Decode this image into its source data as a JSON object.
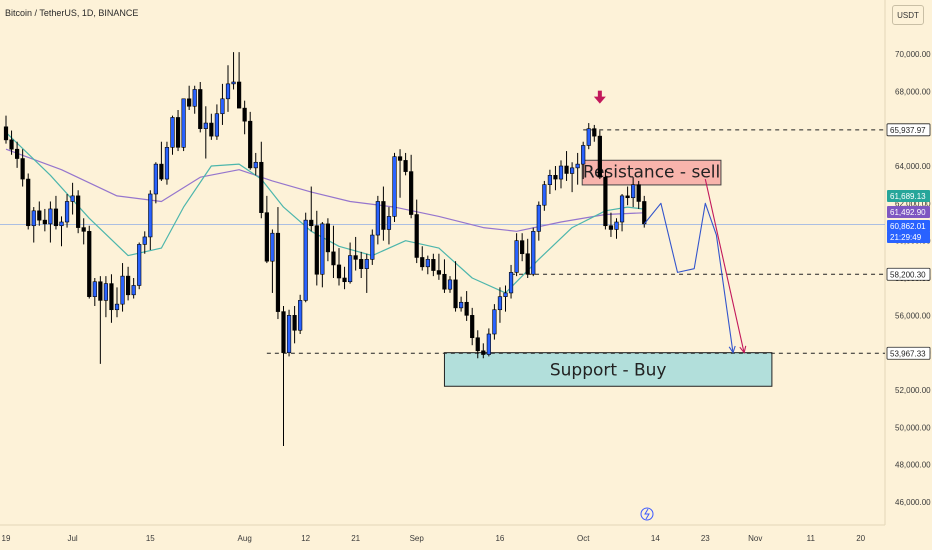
{
  "header": {
    "title": "Bitcoin / TetherUS, 1D, BINANCE",
    "currency": "USDT"
  },
  "colors": {
    "background": "#fdf2d8",
    "candle": "#000000",
    "bull_fill": "#2962ff",
    "ma_fast": "#4db6ac",
    "ma_slow": "#9575cd",
    "resistance_fill": "#f8b4ac",
    "support_fill": "#b2dfdb",
    "projection_blue": "#3355cc",
    "projection_red": "#c2185b",
    "marker": "#c2185b"
  },
  "y_axis": {
    "ticks": [
      "70,000.00",
      "68,000.00",
      "66,000.00",
      "64,000.00",
      "62,000.00",
      "60,000.00",
      "58,000.00",
      "56,000.00",
      "54,000.00",
      "52,000.00",
      "50,000.00",
      "48,000.00",
      "46,000.00"
    ],
    "tick_values": [
      70000,
      68000,
      66000,
      64000,
      62000,
      60000,
      58000,
      56000,
      54000,
      52000,
      50000,
      48000,
      46000
    ]
  },
  "x_axis": {
    "ticks": [
      {
        "label": "19",
        "x_index": 0
      },
      {
        "label": "Jul",
        "x_index": 12
      },
      {
        "label": "15",
        "x_index": 26
      },
      {
        "label": "Aug",
        "x_index": 43
      },
      {
        "label": "12",
        "x_index": 54
      },
      {
        "label": "21",
        "x_index": 63
      },
      {
        "label": "Sep",
        "x_index": 74
      },
      {
        "label": "16",
        "x_index": 89
      },
      {
        "label": "Oct",
        "x_index": 104
      },
      {
        "label": "14",
        "x_index": 117
      },
      {
        "label": "23",
        "x_index": 126
      },
      {
        "label": "Nov",
        "x_index": 135
      },
      {
        "label": "11",
        "x_index": 145
      },
      {
        "label": "20",
        "x_index": 154
      }
    ]
  },
  "price_badges": [
    {
      "label": "65,937.97",
      "value": 65937.97,
      "style": "outline"
    },
    {
      "label": "61,689.13",
      "value": 61689.13,
      "style": "green"
    },
    {
      "label": "61,492.90",
      "value": 61492.9,
      "style": "purple"
    },
    {
      "label": "60,862.01",
      "value": 60862.01,
      "style": "blue"
    },
    {
      "label": "21:29:49",
      "value": 60350,
      "style": "blue-sub"
    },
    {
      "label": "58,200.30",
      "value": 58200.3,
      "style": "outline"
    },
    {
      "label": "53,967.33",
      "value": 53967.33,
      "style": "outline"
    }
  ],
  "annotations": {
    "resistance_label": "Resistance - sell",
    "support_label": "Support - Buy"
  },
  "chart_data": {
    "type": "candlestick",
    "title": "Bitcoin / TetherUS, 1D, BINANCE",
    "ylim": [
      45000,
      71500
    ],
    "levels": [
      {
        "label": "65,937.97",
        "value": 65937.97
      },
      {
        "label": "58,200.30",
        "value": 58200.3
      },
      {
        "label": "53,967.33",
        "value": 53967.33
      }
    ],
    "support_zone": {
      "low": 52200,
      "high": 54000,
      "x_from": 79,
      "x_to": 138
    },
    "resistance_zone": {
      "low": 63200,
      "high": 64200,
      "x_from": 104,
      "x_to": 129
    },
    "candles": [
      [
        0,
        66100,
        66700,
        65200,
        65400
      ],
      [
        1,
        65400,
        65900,
        64600,
        64900
      ],
      [
        2,
        64900,
        65300,
        63900,
        64400
      ],
      [
        3,
        64400,
        64900,
        62900,
        63300
      ],
      [
        4,
        63300,
        63600,
        60600,
        60800
      ],
      [
        5,
        60800,
        61800,
        59900,
        61600
      ],
      [
        6,
        61600,
        62100,
        60800,
        61100
      ],
      [
        7,
        61100,
        61700,
        60500,
        60900
      ],
      [
        8,
        60900,
        62100,
        59900,
        61700
      ],
      [
        9,
        61700,
        62400,
        60600,
        60800
      ],
      [
        10,
        60800,
        61300,
        59700,
        61000
      ],
      [
        11,
        61000,
        62500,
        60700,
        62100
      ],
      [
        12,
        62100,
        63100,
        61400,
        62400
      ],
      [
        13,
        62400,
        62700,
        60400,
        60700
      ],
      [
        14,
        60700,
        61200,
        59800,
        60500
      ],
      [
        15,
        60500,
        60800,
        56900,
        57000
      ],
      [
        16,
        57000,
        58000,
        56500,
        57800
      ],
      [
        17,
        57800,
        58100,
        53400,
        56800
      ],
      [
        18,
        56800,
        58100,
        55900,
        57700
      ],
      [
        19,
        57700,
        58200,
        55600,
        56300
      ],
      [
        20,
        56300,
        57500,
        55900,
        56600
      ],
      [
        21,
        56600,
        58800,
        56200,
        58100
      ],
      [
        22,
        58100,
        58600,
        56800,
        57100
      ],
      [
        23,
        57100,
        58000,
        56900,
        57600
      ],
      [
        24,
        57600,
        59900,
        57400,
        59800
      ],
      [
        25,
        59800,
        60500,
        59300,
        60200
      ],
      [
        26,
        60200,
        62700,
        59500,
        62500
      ],
      [
        27,
        62500,
        64200,
        62000,
        64100
      ],
      [
        28,
        64100,
        65300,
        63200,
        63300
      ],
      [
        29,
        63300,
        65300,
        63000,
        65000
      ],
      [
        30,
        65000,
        66700,
        64600,
        66600
      ],
      [
        31,
        66600,
        67000,
        64800,
        65000
      ],
      [
        32,
        65000,
        67600,
        64800,
        67600
      ],
      [
        33,
        67600,
        68300,
        67000,
        67200
      ],
      [
        34,
        67200,
        68300,
        66800,
        68100
      ],
      [
        35,
        68100,
        68500,
        65800,
        66000
      ],
      [
        36,
        66000,
        67200,
        64400,
        66300
      ],
      [
        37,
        66300,
        66800,
        65400,
        65600
      ],
      [
        38,
        65600,
        67300,
        65400,
        66800
      ],
      [
        39,
        66800,
        68400,
        66200,
        67600
      ],
      [
        40,
        67600,
        69400,
        66900,
        68400
      ],
      [
        41,
        68400,
        70100,
        68100,
        68500
      ],
      [
        42,
        68500,
        70100,
        67200,
        67100
      ],
      [
        43,
        67100,
        67500,
        65700,
        66400
      ],
      [
        44,
        66400,
        66900,
        63800,
        63900
      ],
      [
        45,
        63900,
        64700,
        63500,
        64200
      ],
      [
        46,
        64200,
        65300,
        61200,
        61500
      ],
      [
        47,
        61500,
        62400,
        58800,
        58900
      ],
      [
        48,
        58900,
        60600,
        57200,
        60400
      ],
      [
        49,
        60400,
        61800,
        55800,
        56200
      ],
      [
        50,
        56200,
        56500,
        49000,
        54000
      ],
      [
        51,
        54000,
        56300,
        53800,
        56000
      ],
      [
        52,
        56000,
        56500,
        54500,
        55200
      ],
      [
        53,
        55200,
        57100,
        55000,
        56800
      ],
      [
        54,
        56800,
        61500,
        56700,
        61100
      ],
      [
        55,
        61100,
        62900,
        60500,
        60800
      ],
      [
        56,
        60800,
        61600,
        57600,
        58200
      ],
      [
        57,
        58200,
        61000,
        57500,
        60900
      ],
      [
        58,
        60900,
        61200,
        58900,
        59400
      ],
      [
        59,
        59400,
        60800,
        58000,
        58700
      ],
      [
        60,
        58700,
        59600,
        57600,
        58000
      ],
      [
        61,
        58000,
        58600,
        57400,
        57800
      ],
      [
        62,
        57800,
        59900,
        57700,
        59200
      ],
      [
        63,
        59200,
        60200,
        58400,
        59000
      ],
      [
        64,
        59000,
        59400,
        58000,
        58500
      ],
      [
        65,
        58500,
        59300,
        57200,
        59000
      ],
      [
        66,
        59000,
        60600,
        58700,
        60300
      ],
      [
        67,
        60300,
        62400,
        59800,
        62100
      ],
      [
        68,
        62100,
        62900,
        60000,
        60600
      ],
      [
        69,
        60600,
        61800,
        59800,
        61300
      ],
      [
        70,
        61300,
        64700,
        61000,
        64500
      ],
      [
        71,
        64500,
        64900,
        62300,
        64300
      ],
      [
        72,
        64300,
        64700,
        63500,
        63700
      ],
      [
        73,
        63700,
        64600,
        61200,
        61400
      ],
      [
        74,
        61400,
        62200,
        58800,
        59100
      ],
      [
        75,
        59100,
        59700,
        58400,
        58600
      ],
      [
        76,
        58600,
        59200,
        58200,
        59000
      ],
      [
        77,
        59000,
        59300,
        58100,
        58400
      ],
      [
        78,
        58400,
        59300,
        57900,
        58200
      ],
      [
        79,
        58200,
        59000,
        57200,
        57400
      ],
      [
        80,
        57400,
        58100,
        57200,
        57900
      ],
      [
        81,
        57900,
        58900,
        56200,
        56400
      ],
      [
        82,
        56400,
        57000,
        56200,
        56700
      ],
      [
        83,
        56700,
        57300,
        55700,
        56000
      ],
      [
        84,
        56000,
        56400,
        54400,
        54800
      ],
      [
        85,
        54800,
        55200,
        53700,
        54100
      ],
      [
        86,
        54100,
        54500,
        53700,
        53900
      ],
      [
        87,
        53900,
        55300,
        53800,
        55000
      ],
      [
        88,
        55000,
        56600,
        54700,
        56300
      ],
      [
        89,
        56300,
        57500,
        55600,
        57000
      ],
      [
        90,
        57000,
        57600,
        56200,
        57200
      ],
      [
        91,
        57200,
        58700,
        56900,
        58300
      ],
      [
        92,
        58300,
        60400,
        58100,
        60000
      ],
      [
        93,
        60000,
        60400,
        58900,
        59300
      ],
      [
        94,
        59300,
        60100,
        58000,
        58200
      ],
      [
        95,
        58200,
        60700,
        58100,
        60500
      ],
      [
        96,
        60500,
        62100,
        60000,
        61900
      ],
      [
        97,
        61900,
        63200,
        61600,
        63000
      ],
      [
        98,
        63000,
        63800,
        62500,
        63500
      ],
      [
        99,
        63500,
        64000,
        62700,
        63300
      ],
      [
        100,
        63300,
        64300,
        62800,
        64000
      ],
      [
        101,
        64000,
        64800,
        63200,
        63600
      ],
      [
        102,
        63600,
        64200,
        62600,
        63900
      ],
      [
        103,
        63900,
        64700,
        63000,
        64100
      ],
      [
        104,
        64100,
        65300,
        63300,
        65100
      ],
      [
        105,
        65100,
        66300,
        64900,
        66000
      ],
      [
        106,
        66000,
        66200,
        65300,
        65600
      ],
      [
        107,
        65600,
        65900,
        63300,
        63400
      ],
      [
        108,
        63400,
        63800,
        60600,
        60800
      ],
      [
        109,
        60800,
        61500,
        60200,
        60600
      ],
      [
        110,
        60600,
        61200,
        60100,
        61000
      ],
      [
        111,
        61000,
        62500,
        60500,
        62400
      ],
      [
        112,
        62400,
        62900,
        61900,
        62300
      ],
      [
        113,
        62300,
        63400,
        61800,
        63000
      ],
      [
        114,
        63000,
        63200,
        61700,
        62100
      ],
      [
        115,
        62100,
        62400,
        60700,
        60900
      ]
    ],
    "ma_fast": {
      "name": "",
      "values": [
        [
          0,
          65800
        ],
        [
          8,
          63500
        ],
        [
          15,
          61200
        ],
        [
          22,
          59200
        ],
        [
          28,
          59600
        ],
        [
          32,
          61800
        ],
        [
          37,
          64000
        ],
        [
          42,
          64100
        ],
        [
          46,
          63300
        ],
        [
          50,
          61800
        ],
        [
          55,
          60500
        ],
        [
          60,
          59700
        ],
        [
          66,
          59200
        ],
        [
          72,
          60000
        ],
        [
          78,
          59600
        ],
        [
          84,
          58000
        ],
        [
          90,
          57200
        ],
        [
          96,
          59000
        ],
        [
          102,
          60700
        ],
        [
          108,
          61600
        ],
        [
          112,
          61800
        ],
        [
          115,
          61689
        ]
      ]
    },
    "ma_slow": {
      "name": "",
      "values": [
        [
          0,
          64900
        ],
        [
          10,
          63800
        ],
        [
          20,
          62400
        ],
        [
          28,
          62100
        ],
        [
          35,
          63400
        ],
        [
          42,
          63800
        ],
        [
          48,
          63200
        ],
        [
          55,
          62600
        ],
        [
          62,
          62100
        ],
        [
          70,
          61800
        ],
        [
          78,
          61300
        ],
        [
          86,
          60700
        ],
        [
          92,
          60500
        ],
        [
          100,
          61000
        ],
        [
          108,
          61400
        ],
        [
          115,
          61492
        ]
      ]
    },
    "projection_blue": [
      [
        115,
        60900
      ],
      [
        118,
        62000
      ],
      [
        121,
        58300
      ],
      [
        124,
        58500
      ],
      [
        126,
        62000
      ],
      [
        128,
        60300
      ],
      [
        131,
        54000
      ]
    ],
    "projection_red": [
      [
        126,
        63300
      ],
      [
        133,
        54000
      ]
    ],
    "sell_marker": {
      "x_index": 107,
      "value": 67500
    }
  }
}
